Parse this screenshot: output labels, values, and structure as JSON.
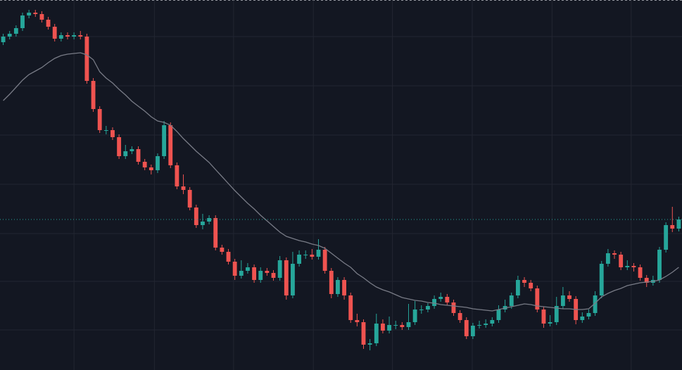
{
  "chart_data": {
    "type": "candlestick",
    "xlim": [
      0,
      106
    ],
    "xticks": [
      11.5,
      24,
      36.3,
      48.7,
      61,
      73.4,
      85.8,
      98.1
    ],
    "ylim": [
      0,
      526
    ],
    "yticks": [
      474,
      404,
      334,
      264,
      194,
      126,
      57
    ],
    "grid": true,
    "up_color": "#26a69a",
    "down_color": "#ef5350",
    "open": [
      466,
      474,
      478,
      486,
      504,
      508,
      506,
      498,
      488,
      471,
      476,
      474,
      476,
      474,
      411,
      371,
      341,
      341,
      331,
      304,
      311,
      314,
      296,
      288,
      284,
      304,
      348,
      291,
      261,
      256,
      231,
      206,
      211,
      216,
      174,
      168,
      154,
      134,
      141,
      146,
      128,
      141,
      138,
      131,
      156,
      106,
      151,
      164,
      164,
      161,
      171,
      141,
      108,
      128,
      106,
      71,
      68,
      36,
      38,
      66,
      56,
      64,
      64,
      61,
      68,
      86,
      86,
      91,
      101,
      104,
      96,
      81,
      71,
      48,
      63,
      64,
      66,
      71,
      86,
      91,
      106,
      128,
      124,
      116,
      86,
      66,
      68,
      91,
      106,
      101,
      71,
      76,
      81,
      106,
      151,
      166,
      164,
      146,
      148,
      146,
      131,
      124,
      128,
      171,
      206,
      201
    ],
    "high": [
      478,
      482,
      490,
      508,
      512,
      512,
      510,
      502,
      492,
      480,
      480,
      480,
      482,
      478,
      415,
      375,
      347,
      345,
      335,
      320,
      318,
      318,
      300,
      292,
      308,
      354,
      352,
      295,
      278,
      260,
      235,
      222,
      220,
      220,
      178,
      172,
      158,
      156,
      152,
      150,
      146,
      145,
      142,
      162,
      160,
      168,
      170,
      170,
      172,
      186,
      175,
      145,
      132,
      132,
      110,
      80,
      72,
      44,
      80,
      72,
      76,
      70,
      68,
      94,
      98,
      92,
      95,
      106,
      110,
      108,
      100,
      85,
      75,
      67,
      70,
      72,
      75,
      92,
      100,
      110,
      134,
      132,
      128,
      120,
      90,
      78,
      104,
      118,
      112,
      105,
      82,
      86,
      112,
      155,
      172,
      170,
      168,
      156,
      152,
      150,
      135,
      134,
      175,
      210,
      232,
      218
    ],
    "low": [
      462,
      470,
      474,
      482,
      500,
      502,
      494,
      484,
      467,
      467,
      470,
      470,
      470,
      407,
      367,
      337,
      335,
      327,
      300,
      300,
      307,
      292,
      284,
      278,
      280,
      300,
      287,
      257,
      250,
      227,
      202,
      200,
      207,
      170,
      164,
      150,
      128,
      130,
      137,
      124,
      124,
      134,
      127,
      127,
      100,
      102,
      147,
      158,
      157,
      157,
      137,
      102,
      104,
      100,
      67,
      62,
      30,
      28,
      34,
      52,
      52,
      58,
      57,
      57,
      64,
      80,
      82,
      87,
      97,
      92,
      77,
      67,
      44,
      44,
      59,
      60,
      62,
      67,
      82,
      87,
      102,
      118,
      112,
      82,
      60,
      62,
      64,
      87,
      97,
      65,
      67,
      72,
      77,
      102,
      147,
      158,
      142,
      142,
      140,
      127,
      118,
      120,
      124,
      167,
      196,
      197
    ],
    "close": [
      474,
      478,
      486,
      504,
      508,
      506,
      498,
      488,
      471,
      476,
      474,
      476,
      474,
      411,
      371,
      341,
      341,
      331,
      304,
      311,
      314,
      296,
      288,
      284,
      304,
      348,
      291,
      261,
      256,
      231,
      206,
      211,
      216,
      174,
      168,
      154,
      134,
      141,
      146,
      128,
      141,
      138,
      131,
      156,
      106,
      151,
      164,
      164,
      161,
      171,
      141,
      108,
      128,
      106,
      71,
      68,
      36,
      38,
      66,
      56,
      64,
      64,
      61,
      68,
      86,
      86,
      91,
      101,
      104,
      96,
      81,
      71,
      48,
      63,
      64,
      66,
      71,
      86,
      91,
      106,
      128,
      124,
      116,
      86,
      66,
      68,
      91,
      106,
      101,
      71,
      76,
      81,
      106,
      151,
      166,
      164,
      146,
      148,
      146,
      131,
      124,
      128,
      171,
      206,
      201,
      214
    ],
    "ma": {
      "color": "#787b86",
      "values": [
        383,
        392,
        402,
        412,
        420,
        425,
        430,
        437,
        443,
        447,
        449,
        450,
        451,
        448,
        441,
        424,
        415,
        408,
        399,
        391,
        382,
        375,
        368,
        360,
        354,
        352,
        348,
        339,
        329,
        320,
        311,
        303,
        295,
        285,
        275,
        265,
        255,
        246,
        237,
        229,
        220,
        212,
        204,
        196,
        190,
        187,
        184,
        182,
        179,
        177,
        173,
        166,
        159,
        152,
        146,
        137,
        131,
        124,
        118,
        114,
        111,
        107,
        103,
        101,
        99,
        98,
        96,
        95,
        93,
        92,
        91,
        90,
        89,
        87,
        86,
        85,
        84,
        86,
        88,
        90,
        92,
        94,
        93,
        91,
        90,
        89,
        88,
        87,
        87,
        86,
        86,
        87,
        95,
        104,
        109,
        113,
        116,
        120,
        122,
        124,
        125,
        126,
        128,
        133,
        139,
        146
      ]
    },
    "last_price": {
      "value": 214,
      "color": "#26a69a"
    }
  }
}
